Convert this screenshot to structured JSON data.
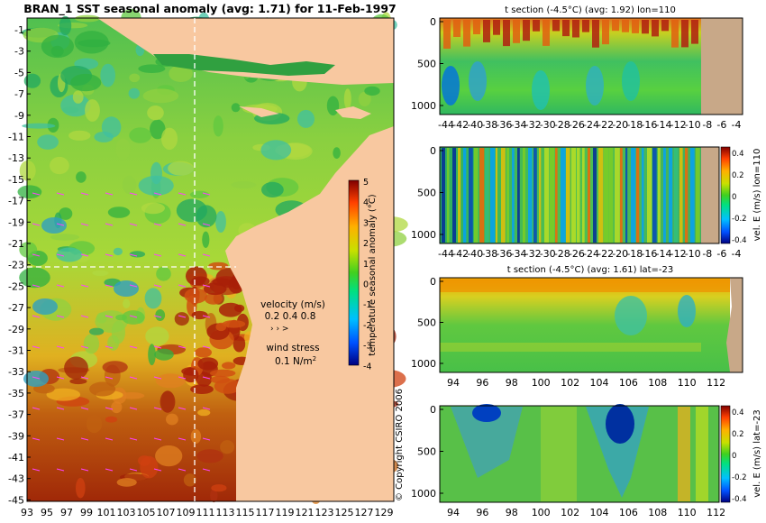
{
  "chart_data": [
    {
      "type": "heatmap",
      "title": "BRAN_1 SST seasonal anomaly (avg: 1.71) for 11-Feb-1997",
      "x_ticks": [
        "93",
        "95",
        "97",
        "99",
        "101",
        "103",
        "105",
        "107",
        "109",
        "111",
        "113",
        "115",
        "117",
        "119",
        "121",
        "123",
        "125",
        "127",
        "129"
      ],
      "y_ticks": [
        "-1",
        "-3",
        "-5",
        "-7",
        "-9",
        "-11",
        "-13",
        "-15",
        "-17",
        "-19",
        "-21",
        "-23",
        "-25",
        "-27",
        "-29",
        "-31",
        "-33",
        "-35",
        "-37",
        "-39",
        "-41",
        "-43",
        "-45"
      ],
      "xlim": [
        93,
        130
      ],
      "ylim": [
        -45,
        1
      ],
      "crosshair": {
        "lon": 110,
        "lat": -23
      },
      "colorbar": {
        "label": "temperature seasonal anomaly (°C)",
        "ticks": [
          "5",
          "4",
          "3",
          "2",
          "1",
          "0",
          "-1",
          "-2",
          "-3",
          "-4"
        ],
        "range": [
          -4,
          5
        ]
      },
      "legend": {
        "velocity_label": "velocity (m/s)",
        "velocity_scale": "0.2 0.4 0.8",
        "wind_label": "wind stress",
        "wind_value": "0.1 N/m",
        "wind_exp": "2"
      }
    },
    {
      "type": "heatmap",
      "title": "t section (-4.5°C) (avg: 1.92) lon=110",
      "x_ticks": [
        "-44",
        "-42",
        "-40",
        "-38",
        "-36",
        "-34",
        "-32",
        "-30",
        "-28",
        "-26",
        "-24",
        "-22",
        "-20",
        "-18",
        "-16",
        "-14",
        "-12",
        "-10",
        "-8",
        "-6",
        "-4"
      ],
      "y_ticks": [
        "0",
        "500",
        "1000"
      ]
    },
    {
      "type": "heatmap",
      "ylabel": "vel. E (m/s) lon=110",
      "x_ticks": [
        "-44",
        "-42",
        "-40",
        "-38",
        "-36",
        "-34",
        "-32",
        "-30",
        "-28",
        "-26",
        "-24",
        "-22",
        "-20",
        "-18",
        "-16",
        "-14",
        "-12",
        "-10",
        "-8",
        "-6",
        "-4"
      ],
      "y_ticks": [
        "0",
        "500",
        "1000"
      ],
      "colorbar_ticks": [
        "0.4",
        "0.2",
        "0",
        "-0.2",
        "-0.4"
      ]
    },
    {
      "type": "heatmap",
      "title": "t section (-4.5°C) (avg: 1.61) lat=-23",
      "x_ticks": [
        "94",
        "96",
        "98",
        "100",
        "102",
        "104",
        "106",
        "108",
        "110",
        "112"
      ],
      "y_ticks": [
        "0",
        "500",
        "1000"
      ]
    },
    {
      "type": "heatmap",
      "ylabel": "vel. E (m/s) lat=-23",
      "x_ticks": [
        "94",
        "96",
        "98",
        "100",
        "102",
        "104",
        "106",
        "108",
        "110",
        "112"
      ],
      "y_ticks": [
        "0",
        "500",
        "1000"
      ],
      "colorbar_ticks": [
        "0.4",
        "0.2",
        "0",
        "-0.2",
        "-0.4"
      ]
    }
  ],
  "copyright": "© Copyright CSIRO 2006"
}
